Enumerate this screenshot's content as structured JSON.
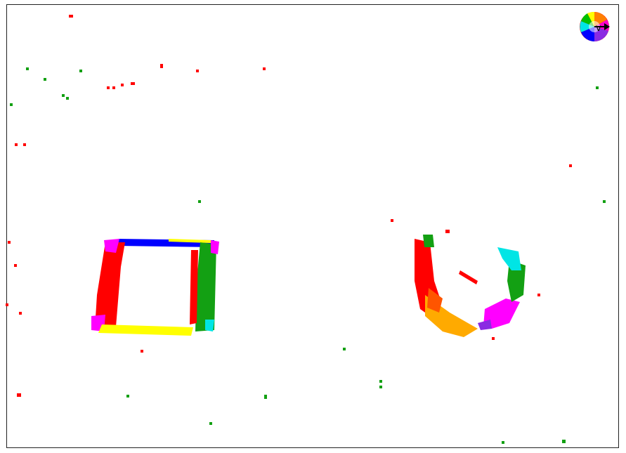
{
  "legend": {
    "label": "v",
    "wheel_colors": [
      "#ff0000",
      "#ff8000",
      "#ffff00",
      "#00c000",
      "#00ffff",
      "#0000ff",
      "#ff00ff",
      "#ff0000"
    ]
  },
  "colors": {
    "red": "#ff0000",
    "green": "#13a013",
    "blue": "#0000ff",
    "yellow": "#ffff00",
    "magenta": "#ff00ff",
    "cyan": "#00e5e5",
    "orange": "#ffaa00",
    "purple": "#8a2be2",
    "frame": "#222222"
  }
}
